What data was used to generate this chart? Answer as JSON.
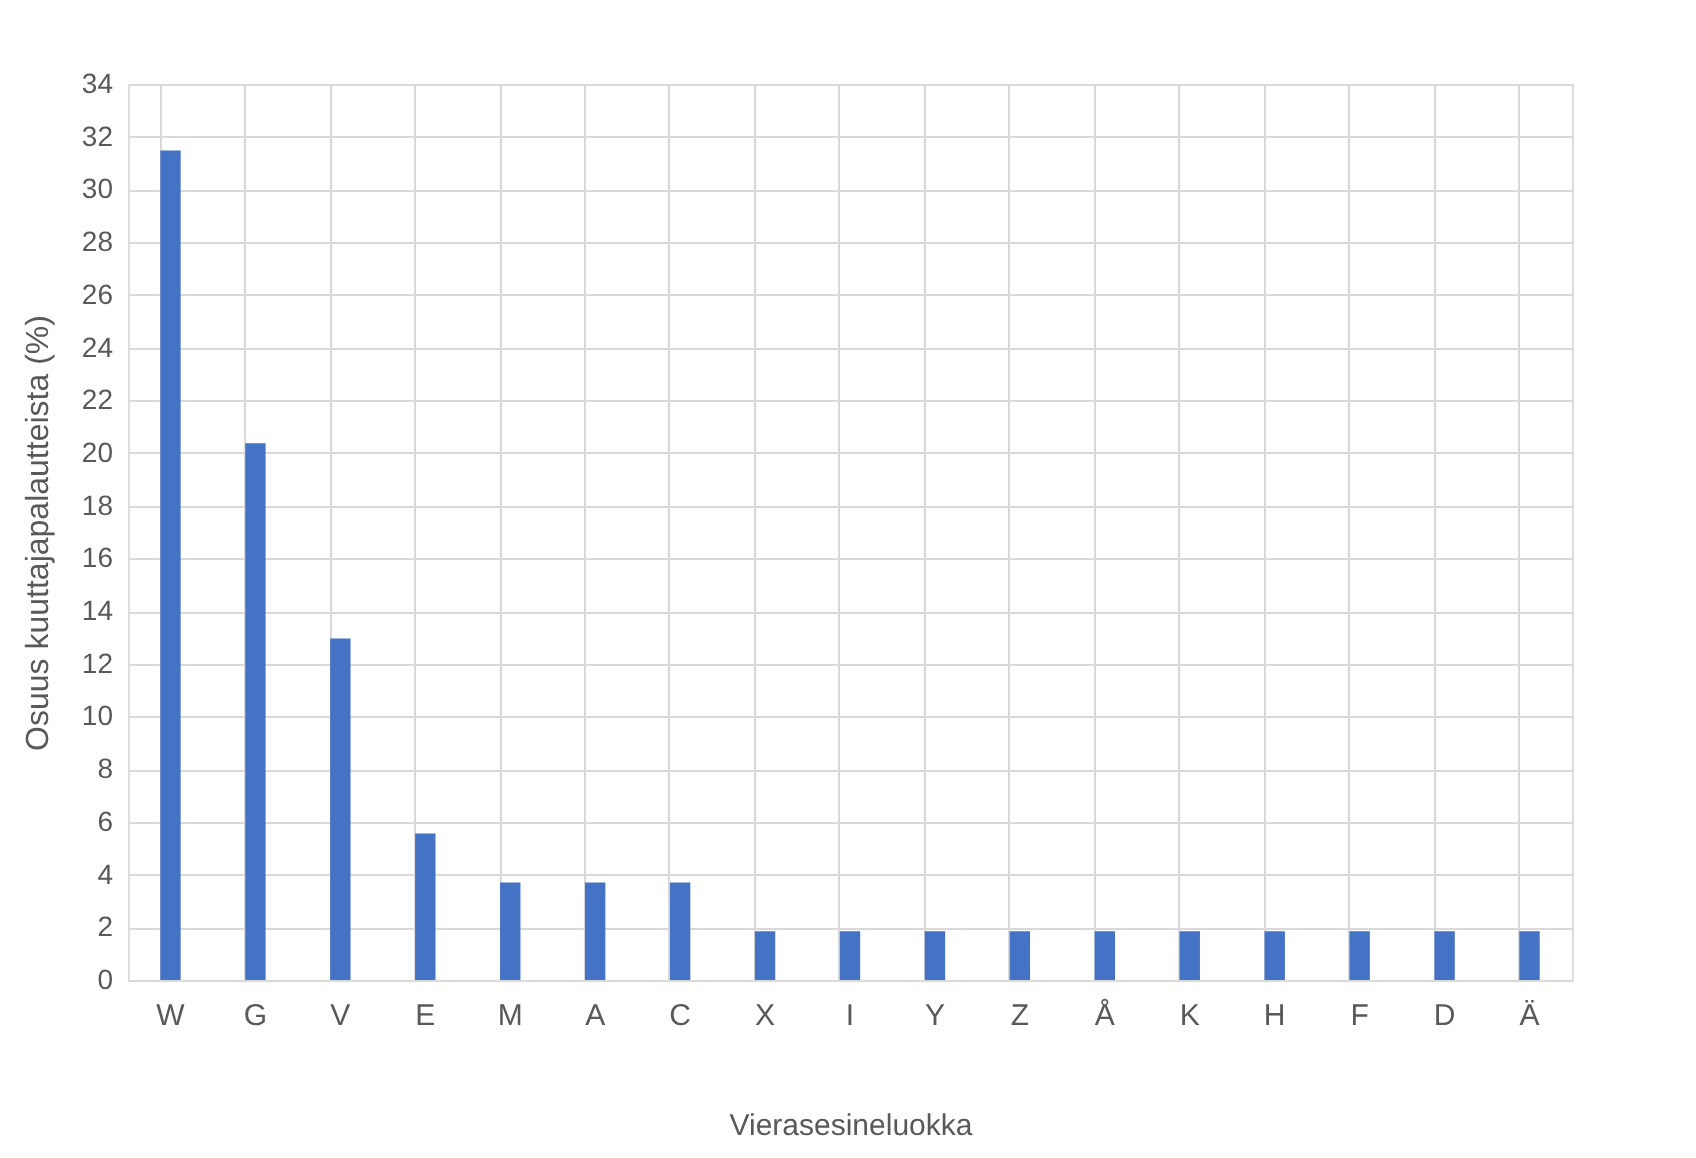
{
  "chart_data": {
    "type": "bar",
    "xlabel": "Vierasesineluokka",
    "ylabel": "Osuus kuuttajapalautteista (%)",
    "categories": [
      "W",
      "G",
      "V",
      "E",
      "M",
      "A",
      "C",
      "X",
      "I",
      "Y",
      "Z",
      "Å",
      "K",
      "H",
      "F",
      "D",
      "Ä"
    ],
    "values": [
      31.48,
      20.37,
      12.96,
      5.56,
      3.7,
      3.7,
      3.7,
      1.85,
      1.85,
      1.85,
      1.85,
      1.85,
      1.85,
      1.85,
      1.85,
      1.85,
      1.85
    ],
    "color": "#4472c4",
    "ylim": [
      0,
      34
    ],
    "yticks": [
      0,
      2,
      4,
      6,
      8,
      10,
      12,
      14,
      16,
      18,
      20,
      22,
      24,
      26,
      28,
      30,
      32,
      34
    ],
    "grid": true
  }
}
